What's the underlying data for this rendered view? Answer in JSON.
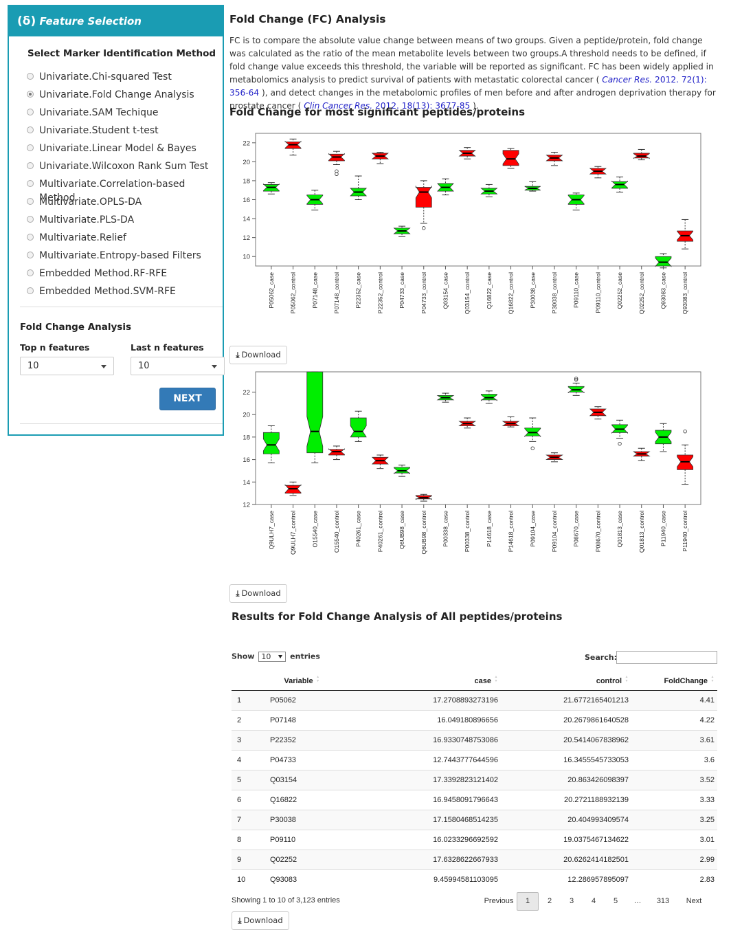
{
  "panel": {
    "header_delta": "(δ)",
    "header_title": "Feature Selection",
    "method_title": "Select Marker Identification Method",
    "methods": [
      {
        "label": "Univariate.Chi-squared Test",
        "checked": false
      },
      {
        "label": "Univariate.Fold Change Analysis",
        "checked": true
      },
      {
        "label": "Univariate.SAM Techique",
        "checked": false
      },
      {
        "label": "Univariate.Student t-test",
        "checked": false
      },
      {
        "label": "Univariate.Linear Model & Bayes",
        "checked": false
      },
      {
        "label": "Univariate.Wilcoxon Rank Sum Test",
        "checked": false
      },
      {
        "label": "Multivariate.Correlation-based Method",
        "checked": false
      },
      {
        "label": "Multivariate.OPLS-DA",
        "checked": false
      },
      {
        "label": "Multivariate.PLS-DA",
        "checked": false
      },
      {
        "label": "Multivariate.Relief",
        "checked": false
      },
      {
        "label": "Multivariate.Entropy-based Filters",
        "checked": false
      },
      {
        "label": "Embedded Method.RF-RFE",
        "checked": false
      },
      {
        "label": "Embedded Method.SVM-RFE",
        "checked": false
      }
    ],
    "fc_heading": "Fold Change Analysis",
    "top_label": "Top n features",
    "top_value": "10",
    "last_label": "Last n features",
    "last_value": "10",
    "next_label": "NEXT"
  },
  "main": {
    "title": "Fold Change (FC) Analysis",
    "desc_1": "FC is to compare the absolute value change between means of two groups. Given a peptide/protein, fold change was calculated as the ratio of the mean metabolite levels between two groups.A threshold needs to be defined, if fold change value exceeds this threshold, the variable will be reported as significant. FC has been widely applied in metabolomics analysis to predict survival of patients with metastatic colorectal cancer ( ",
    "cite_1_journal": "Cancer Res.",
    "cite_1_rest": " 2012. 72(1): 356-64",
    "desc_2": " ), and detect changes in the metabolomic profiles of men before and after androgen deprivation therapy for prostate cancer ( ",
    "cite_2_journal": "Clin Cancer Res.",
    "cite_2_rest": " 2012. 18(13): 3677-85",
    "desc_3": " ).",
    "chart_heading": "Fold Change for most significant peptides/proteins",
    "download_label": "Download",
    "table_heading": "Results for Fold Change Analysis of All peptides/proteins"
  },
  "colors": {
    "up": "#ff0000",
    "down": "#00ee00",
    "accent": "#1a9cb3",
    "button": "#337ab7"
  },
  "chart_data": [
    {
      "type": "box",
      "ylim": [
        9,
        23
      ],
      "yticks": [
        10,
        12,
        14,
        16,
        18,
        20,
        22
      ],
      "categories": [
        "P05062_case",
        "P05062_control",
        "P07148_case",
        "P07148_control",
        "P22352_case",
        "P22352_control",
        "P04733_case",
        "P04733_control",
        "Q03154_case",
        "Q03154_control",
        "Q16822_case",
        "Q16822_control",
        "P30038_case",
        "P30038_control",
        "P09110_case",
        "P09110_control",
        "Q02252_case",
        "Q02252_control",
        "Q93083_case",
        "Q93083_control"
      ],
      "boxes": [
        {
          "min": 16.6,
          "q1": 16.9,
          "med": 17.3,
          "q3": 17.6,
          "max": 17.8,
          "color": "green",
          "outliers": []
        },
        {
          "min": 20.7,
          "q1": 21.4,
          "med": 21.8,
          "q3": 22.1,
          "max": 22.4,
          "color": "red",
          "outliers": []
        },
        {
          "min": 14.9,
          "q1": 15.5,
          "med": 16.0,
          "q3": 16.5,
          "max": 17.0,
          "color": "green",
          "outliers": []
        },
        {
          "min": 19.7,
          "q1": 20.1,
          "med": 20.5,
          "q3": 20.8,
          "max": 21.1,
          "color": "red",
          "outliers": [
            18.7,
            19.0
          ]
        },
        {
          "min": 16.0,
          "q1": 16.4,
          "med": 16.8,
          "q3": 17.2,
          "max": 18.5,
          "color": "green",
          "outliers": []
        },
        {
          "min": 19.8,
          "q1": 20.3,
          "med": 20.6,
          "q3": 20.9,
          "max": 21.0,
          "color": "red",
          "outliers": []
        },
        {
          "min": 12.1,
          "q1": 12.4,
          "med": 12.7,
          "q3": 13.0,
          "max": 13.2,
          "color": "green",
          "outliers": []
        },
        {
          "min": 13.5,
          "q1": 15.2,
          "med": 16.8,
          "q3": 17.3,
          "max": 18.0,
          "color": "red",
          "outliers": [
            13.0
          ]
        },
        {
          "min": 16.5,
          "q1": 16.9,
          "med": 17.3,
          "q3": 17.7,
          "max": 18.2,
          "color": "green",
          "outliers": []
        },
        {
          "min": 20.3,
          "q1": 20.6,
          "med": 20.9,
          "q3": 21.2,
          "max": 21.5,
          "color": "red",
          "outliers": []
        },
        {
          "min": 16.3,
          "q1": 16.6,
          "med": 16.9,
          "q3": 17.2,
          "max": 17.6,
          "color": "green",
          "outliers": []
        },
        {
          "min": 19.3,
          "q1": 19.6,
          "med": 20.3,
          "q3": 21.2,
          "max": 21.4,
          "color": "red",
          "outliers": []
        },
        {
          "min": 16.9,
          "q1": 17.0,
          "med": 17.2,
          "q3": 17.4,
          "max": 17.9,
          "color": "green",
          "outliers": []
        },
        {
          "min": 19.6,
          "q1": 20.1,
          "med": 20.4,
          "q3": 20.7,
          "max": 21.0,
          "color": "red",
          "outliers": []
        },
        {
          "min": 14.9,
          "q1": 15.5,
          "med": 16.0,
          "q3": 16.5,
          "max": 16.7,
          "color": "green",
          "outliers": []
        },
        {
          "min": 18.3,
          "q1": 18.7,
          "med": 19.0,
          "q3": 19.3,
          "max": 19.5,
          "color": "red",
          "outliers": []
        },
        {
          "min": 16.8,
          "q1": 17.2,
          "med": 17.6,
          "q3": 17.9,
          "max": 18.4,
          "color": "green",
          "outliers": []
        },
        {
          "min": 20.2,
          "q1": 20.4,
          "med": 20.6,
          "q3": 20.9,
          "max": 21.3,
          "color": "red",
          "outliers": []
        },
        {
          "min": 8.8,
          "q1": 9.0,
          "med": 9.4,
          "q3": 10.0,
          "max": 10.3,
          "color": "green",
          "outliers": []
        },
        {
          "min": 10.8,
          "q1": 11.6,
          "med": 12.2,
          "q3": 12.7,
          "max": 13.9,
          "color": "red",
          "outliers": []
        }
      ]
    },
    {
      "type": "box",
      "ylim": [
        12,
        23.8
      ],
      "yticks": [
        12,
        14,
        16,
        18,
        20,
        22
      ],
      "categories": [
        "Q9ULH7_case",
        "Q9ULH7_control",
        "O15540_case",
        "O15540_control",
        "P40261_case",
        "P40261_control",
        "Q6UB98_case",
        "Q6UB98_control",
        "P00338_case",
        "P00338_control",
        "P14618_case",
        "P14618_control",
        "P09104_case",
        "P09104_control",
        "P08670_case",
        "P08670_control",
        "Q01813_case",
        "Q01813_control",
        "P11940_case",
        "P11940_control"
      ],
      "boxes": [
        {
          "min": 15.7,
          "q1": 16.5,
          "med": 17.3,
          "q3": 18.4,
          "max": 19.0,
          "color": "green",
          "outliers": []
        },
        {
          "min": 12.8,
          "q1": 13.0,
          "med": 13.4,
          "q3": 13.7,
          "max": 14.0,
          "color": "red",
          "outliers": []
        },
        {
          "min": 15.7,
          "q1": 16.6,
          "med": 18.5,
          "q3": 23.8,
          "max": 23.8,
          "color": "green",
          "outliers": []
        },
        {
          "min": 16.0,
          "q1": 16.4,
          "med": 16.7,
          "q3": 16.9,
          "max": 17.2,
          "color": "red",
          "outliers": []
        },
        {
          "min": 17.6,
          "q1": 18.0,
          "med": 18.5,
          "q3": 19.7,
          "max": 20.3,
          "color": "green",
          "outliers": []
        },
        {
          "min": 15.2,
          "q1": 15.6,
          "med": 15.9,
          "q3": 16.2,
          "max": 16.4,
          "color": "red",
          "outliers": []
        },
        {
          "min": 14.5,
          "q1": 14.8,
          "med": 15.0,
          "q3": 15.3,
          "max": 15.5,
          "color": "green",
          "outliers": []
        },
        {
          "min": 12.3,
          "q1": 12.5,
          "med": 12.6,
          "q3": 12.8,
          "max": 12.9,
          "color": "red",
          "outliers": []
        },
        {
          "min": 21.1,
          "q1": 21.3,
          "med": 21.5,
          "q3": 21.7,
          "max": 21.9,
          "color": "green",
          "outliers": []
        },
        {
          "min": 18.8,
          "q1": 19.0,
          "med": 19.2,
          "q3": 19.4,
          "max": 19.7,
          "color": "red",
          "outliers": []
        },
        {
          "min": 21.0,
          "q1": 21.3,
          "med": 21.5,
          "q3": 21.8,
          "max": 22.1,
          "color": "green",
          "outliers": []
        },
        {
          "min": 18.9,
          "q1": 19.0,
          "med": 19.2,
          "q3": 19.4,
          "max": 19.8,
          "color": "red",
          "outliers": []
        },
        {
          "min": 17.6,
          "q1": 18.1,
          "med": 18.4,
          "q3": 18.8,
          "max": 19.7,
          "color": "green",
          "outliers": [
            17.0
          ]
        },
        {
          "min": 15.8,
          "q1": 16.0,
          "med": 16.2,
          "q3": 16.4,
          "max": 16.6,
          "color": "red",
          "outliers": []
        },
        {
          "min": 21.7,
          "q1": 22.0,
          "med": 22.2,
          "q3": 22.5,
          "max": 22.8,
          "color": "green",
          "outliers": [
            23.1,
            23.2
          ]
        },
        {
          "min": 19.6,
          "q1": 19.9,
          "med": 20.2,
          "q3": 20.5,
          "max": 20.7,
          "color": "red",
          "outliers": []
        },
        {
          "min": 17.9,
          "q1": 18.4,
          "med": 18.7,
          "q3": 19.1,
          "max": 19.5,
          "color": "green",
          "outliers": [
            17.4
          ]
        },
        {
          "min": 15.9,
          "q1": 16.3,
          "med": 16.5,
          "q3": 16.7,
          "max": 17.0,
          "color": "red",
          "outliers": []
        },
        {
          "min": 16.7,
          "q1": 17.4,
          "med": 18.0,
          "q3": 18.6,
          "max": 19.2,
          "color": "green",
          "outliers": []
        },
        {
          "min": 13.8,
          "q1": 15.1,
          "med": 15.8,
          "q3": 16.4,
          "max": 17.3,
          "color": "red",
          "outliers": [
            18.5
          ]
        }
      ]
    },
    {
      "type": "table",
      "columns": [
        "",
        "Variable",
        "case",
        "control",
        "FoldChange"
      ],
      "rows": [
        [
          "1",
          "P05062",
          "17.2708893273196",
          "21.6772165401213",
          "4.41"
        ],
        [
          "2",
          "P07148",
          "16.049180896656",
          "20.2679861640528",
          "4.22"
        ],
        [
          "3",
          "P22352",
          "16.9330748753086",
          "20.5414067838962",
          "3.61"
        ],
        [
          "4",
          "P04733",
          "12.7443777644596",
          "16.3455545733053",
          "3.6"
        ],
        [
          "5",
          "Q03154",
          "17.3392823121402",
          "20.863426098397",
          "3.52"
        ],
        [
          "6",
          "Q16822",
          "16.9458091796643",
          "20.2721188932139",
          "3.33"
        ],
        [
          "7",
          "P30038",
          "17.1580468514235",
          "20.404993409574",
          "3.25"
        ],
        [
          "8",
          "P09110",
          "16.0233296692592",
          "19.0375467134622",
          "3.01"
        ],
        [
          "9",
          "Q02252",
          "17.6328622667933",
          "20.6262414182501",
          "2.99"
        ],
        [
          "10",
          "Q93083",
          "9.45994581103095",
          "12.286957895097",
          "2.83"
        ]
      ]
    }
  ],
  "table_ui": {
    "show_label": "Show",
    "entries_label": "entries",
    "length_value": "10",
    "search_label": "Search:",
    "info": "Showing 1 to 10 of 3,123 entries",
    "pager": [
      "Previous",
      "1",
      "2",
      "3",
      "4",
      "5",
      "…",
      "313",
      "Next"
    ],
    "current_page": "1"
  }
}
